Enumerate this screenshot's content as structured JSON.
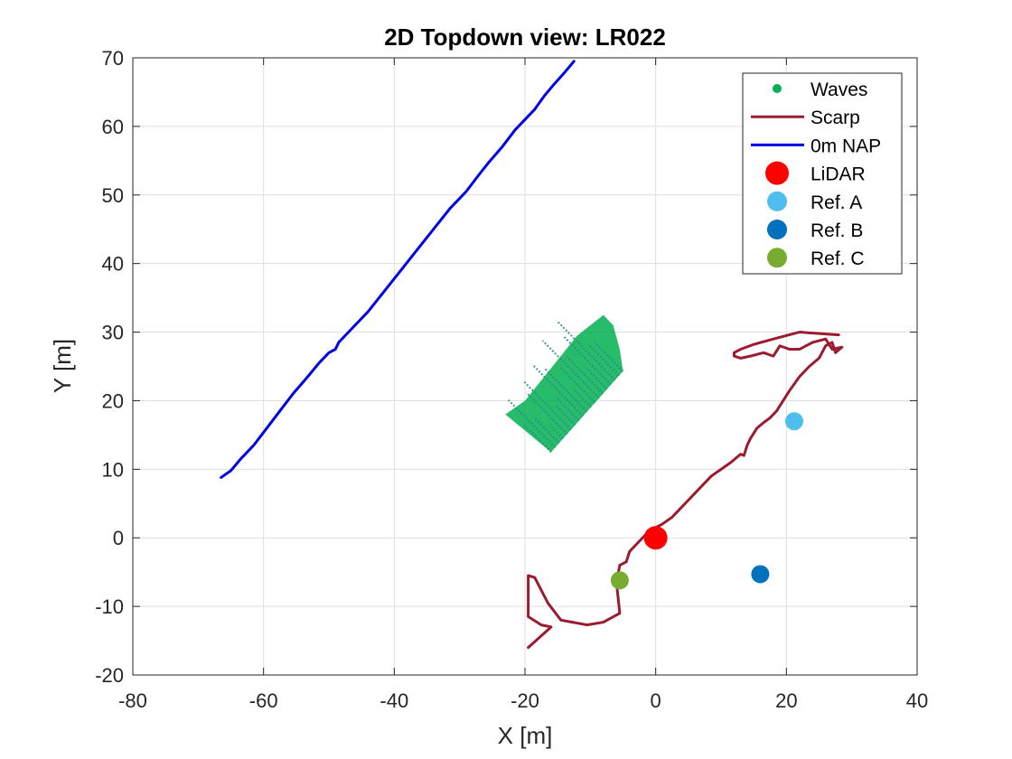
{
  "chart_data": {
    "type": "scatter",
    "title": "2D Topdown view: LR022",
    "xlabel": "X [m]",
    "ylabel": "Y [m]",
    "xlim": [
      -80,
      40
    ],
    "ylim": [
      -20,
      70
    ],
    "xticks": [
      -80,
      -60,
      -40,
      -20,
      0,
      20,
      40
    ],
    "yticks": [
      -20,
      -10,
      0,
      10,
      20,
      30,
      40,
      50,
      60,
      70
    ],
    "grid": true,
    "legend_position": "top-right",
    "series": [
      {
        "name": "Waves",
        "kind": "points-region",
        "color": "#00b050",
        "edge_color": "#2a8c8c",
        "polygon": [
          [
            -23,
            18
          ],
          [
            -16,
            12.5
          ],
          [
            -5,
            24.3
          ],
          [
            -5.5,
            27.5
          ],
          [
            -6.5,
            31
          ],
          [
            -8,
            32.5
          ],
          [
            -12,
            29.5
          ],
          [
            -20,
            20
          ]
        ]
      },
      {
        "name": "Scarp",
        "kind": "line",
        "color": "#9b1b30",
        "points": [
          [
            -19.5,
            -16
          ],
          [
            -16,
            -13
          ],
          [
            -17.5,
            -12.7
          ],
          [
            -19.5,
            -11.5
          ],
          [
            -19.5,
            -7.5
          ],
          [
            -19.5,
            -5.5
          ],
          [
            -18.5,
            -5.8
          ],
          [
            -16.5,
            -9.5
          ],
          [
            -14.5,
            -12
          ],
          [
            -10.5,
            -12.7
          ],
          [
            -8,
            -12.3
          ],
          [
            -5.5,
            -11
          ],
          [
            -6,
            -6.5
          ],
          [
            -5.5,
            -4
          ],
          [
            -4.5,
            -3.5
          ],
          [
            -4,
            -2
          ],
          [
            -2.5,
            -0.5
          ],
          [
            -1,
            1
          ],
          [
            1,
            2
          ],
          [
            2.5,
            3
          ],
          [
            4,
            4.5
          ],
          [
            5.5,
            6
          ],
          [
            7,
            7.5
          ],
          [
            8.5,
            9
          ],
          [
            10,
            10
          ],
          [
            11.5,
            11
          ],
          [
            13,
            12.2
          ],
          [
            13.5,
            12
          ],
          [
            14,
            13.5
          ],
          [
            14.5,
            14.5
          ],
          [
            15.5,
            16
          ],
          [
            16.5,
            16.8
          ],
          [
            17.5,
            17.5
          ],
          [
            18.5,
            18.5
          ],
          [
            19.5,
            20
          ],
          [
            20.5,
            21.5
          ],
          [
            22,
            23.5
          ],
          [
            23.5,
            25
          ],
          [
            25,
            26.2
          ],
          [
            26,
            28
          ],
          [
            27,
            28.5
          ],
          [
            27.5,
            27
          ],
          [
            28.5,
            27.8
          ],
          [
            27,
            27.5
          ],
          [
            26,
            29
          ],
          [
            24,
            28.5
          ],
          [
            22,
            27.5
          ],
          [
            20.5,
            27.5
          ],
          [
            19,
            28
          ],
          [
            18,
            26.5
          ],
          [
            16.5,
            27
          ],
          [
            14.5,
            26.5
          ],
          [
            13,
            26.2
          ],
          [
            12,
            26.5
          ],
          [
            12,
            27
          ],
          [
            13,
            27.5
          ],
          [
            15,
            28.2
          ],
          [
            18,
            29
          ],
          [
            22,
            30
          ],
          [
            25,
            29.8
          ],
          [
            28,
            29.6
          ]
        ]
      },
      {
        "name": "0m NAP",
        "kind": "line",
        "color": "#0000e6",
        "points": [
          [
            -66.5,
            8.8
          ],
          [
            -65,
            9.8
          ],
          [
            -63.5,
            11.5
          ],
          [
            -61.5,
            13.5
          ],
          [
            -59.5,
            16
          ],
          [
            -57.5,
            18.5
          ],
          [
            -55.5,
            21
          ],
          [
            -53.5,
            23.2
          ],
          [
            -51.5,
            25.5
          ],
          [
            -50,
            27
          ],
          [
            -49,
            27.5
          ],
          [
            -48.5,
            28.5
          ],
          [
            -46.5,
            30.5
          ],
          [
            -44,
            33
          ],
          [
            -41.5,
            36
          ],
          [
            -39,
            39
          ],
          [
            -36.5,
            42
          ],
          [
            -34,
            45
          ],
          [
            -31.5,
            48
          ],
          [
            -29,
            50.5
          ],
          [
            -27,
            53
          ],
          [
            -25.5,
            54.8
          ],
          [
            -23.5,
            57
          ],
          [
            -21.5,
            59.5
          ],
          [
            -20,
            61
          ],
          [
            -18.5,
            62.5
          ],
          [
            -17,
            64.5
          ],
          [
            -15.5,
            66.2
          ],
          [
            -14,
            67.8
          ],
          [
            -12.5,
            69.5
          ]
        ]
      },
      {
        "name": "LiDAR",
        "kind": "marker",
        "color": "#ff0000",
        "size": "large",
        "points": [
          [
            0,
            0
          ]
        ]
      },
      {
        "name": "Ref. A",
        "kind": "marker",
        "color": "#4dbeee",
        "size": "medium",
        "points": [
          [
            21.2,
            17
          ]
        ]
      },
      {
        "name": "Ref. B",
        "kind": "marker",
        "color": "#0072bd",
        "size": "medium",
        "points": [
          [
            16,
            -5.3
          ]
        ]
      },
      {
        "name": "Ref. C",
        "kind": "marker",
        "color": "#77ac30",
        "size": "medium",
        "points": [
          [
            -5.5,
            -6.2
          ]
        ]
      }
    ]
  }
}
